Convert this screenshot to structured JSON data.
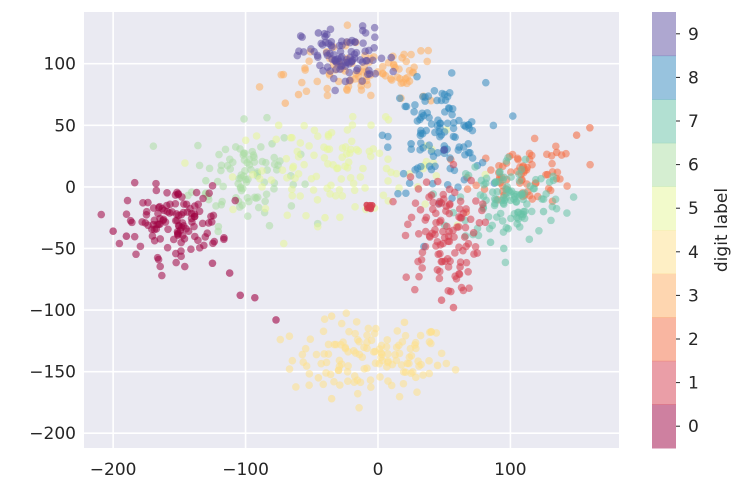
{
  "chart_data": {
    "type": "scatter",
    "title": "",
    "xlabel": "",
    "ylabel": "",
    "xlim": [
      -222,
      182
    ],
    "ylim": [
      -212,
      142
    ],
    "grid": true,
    "style": "seaborn-darkgrid",
    "x_ticks": [
      -200,
      -100,
      0,
      100
    ],
    "x_tick_labels": [
      "−200",
      "−100",
      "0",
      "100"
    ],
    "y_ticks": [
      100,
      50,
      0,
      -50,
      -100,
      -150,
      -200
    ],
    "y_tick_labels": [
      "100",
      "50",
      "0",
      "−50",
      "−100",
      "−150",
      "−200"
    ],
    "colorbar": {
      "label": "digit label",
      "ticks": [
        "0",
        "1",
        "2",
        "3",
        "4",
        "5",
        "6",
        "7",
        "8",
        "9"
      ],
      "colormap": "Spectral",
      "colors": [
        "#9e0142",
        "#d53e4f",
        "#f46d43",
        "#fdae61",
        "#fee08b",
        "#e6f598",
        "#abdda4",
        "#66c2a5",
        "#3288bd",
        "#5e4fa2"
      ]
    },
    "clusters": [
      {
        "digit": 0,
        "center": [
          -155,
          -28
        ],
        "spread": [
          18,
          14
        ],
        "count": 120,
        "extra": [
          [
            -190,
            -40
          ],
          [
            -200,
            -36
          ],
          [
            -125,
            -62
          ],
          [
            -112,
            -70
          ],
          [
            -104,
            -88
          ],
          [
            -93,
            -90
          ],
          [
            -77,
            -108
          ]
        ]
      },
      {
        "digit": 1,
        "center": [
          48,
          -38
        ],
        "spread": [
          14,
          24
        ],
        "count": 110,
        "extra": [
          [
            55,
            -85
          ],
          [
            48,
            -92
          ],
          [
            57,
            -98
          ],
          [
            62,
            -65
          ]
        ]
      },
      {
        "digit": 2,
        "center": [
          112,
          10
        ],
        "spread": [
          20,
          12
        ],
        "count": 70,
        "extra": [
          [
            150,
            42
          ],
          [
            160,
            48
          ],
          [
            135,
            28
          ],
          [
            128,
            10
          ]
        ]
      },
      {
        "digit": 3,
        "center": [
          -10,
          92
        ],
        "spread": [
          30,
          12
        ],
        "count": 90,
        "extra": [
          [
            -60,
            75
          ],
          [
            -70,
            68
          ],
          [
            40,
            70
          ]
        ]
      },
      {
        "digit": 4,
        "center": [
          -5,
          -140
        ],
        "spread": [
          30,
          15
        ],
        "count": 130,
        "extra": [
          [
            -35,
            -105
          ],
          [
            20,
            -110
          ],
          [
            -45,
            -155
          ],
          [
            45,
            -145
          ],
          [
            -35,
            -172
          ]
        ]
      },
      {
        "digit": 5,
        "center": [
          -30,
          15
        ],
        "spread": [
          40,
          18
        ],
        "count": 110,
        "extra": [
          [
            -75,
            50
          ],
          [
            -65,
            40
          ],
          [
            -40,
            -25
          ],
          [
            30,
            0
          ]
        ]
      },
      {
        "digit": 6,
        "center": [
          -100,
          10
        ],
        "spread": [
          20,
          20
        ],
        "count": 90,
        "extra": [
          [
            -130,
            -5
          ],
          [
            -130,
            5
          ],
          [
            -80,
            35
          ]
        ]
      },
      {
        "digit": 7,
        "center": [
          100,
          -10
        ],
        "spread": [
          20,
          18
        ],
        "count": 110,
        "extra": [
          [
            85,
            -45
          ],
          [
            95,
            -50
          ],
          [
            125,
            -20
          ]
        ]
      },
      {
        "digit": 8,
        "center": [
          45,
          40
        ],
        "spread": [
          18,
          22
        ],
        "count": 110,
        "extra": [
          [
            25,
            35
          ],
          [
            65,
            50
          ]
        ]
      },
      {
        "digit": 9,
        "center": [
          -25,
          105
        ],
        "spread": [
          16,
          12
        ],
        "count": 90,
        "extra": [
          [
            -45,
            125
          ],
          [
            -40,
            122
          ],
          [
            10,
            105
          ],
          [
            50,
            30
          ]
        ]
      }
    ]
  }
}
